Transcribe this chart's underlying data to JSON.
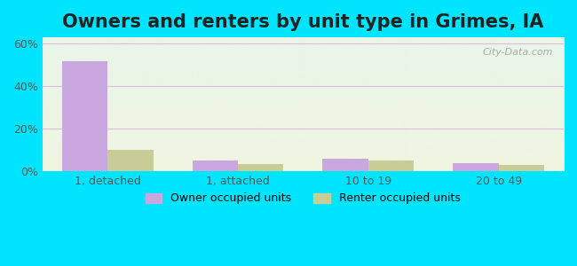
{
  "title": "Owners and renters by unit type in Grimes, IA",
  "categories": [
    "1, detached",
    "1, attached",
    "10 to 19",
    "20 to 49"
  ],
  "owner_values": [
    52,
    5,
    6,
    4
  ],
  "renter_values": [
    10,
    3.5,
    5,
    3
  ],
  "owner_color": "#c9a8e0",
  "renter_color": "#c8cc96",
  "ylim": [
    0,
    63
  ],
  "yticks": [
    0,
    20,
    40,
    60
  ],
  "ytick_labels": [
    "0%",
    "20%",
    "40%",
    "60%"
  ],
  "background_outer": "#00e5ff",
  "background_inner_top": "#e8f5e9",
  "background_inner_bottom": "#f5f5dc",
  "watermark": "City-Data.com",
  "bar_width": 0.35,
  "legend_owner": "Owner occupied units",
  "legend_renter": "Renter occupied units",
  "title_fontsize": 15,
  "tick_fontsize": 9,
  "legend_fontsize": 9
}
